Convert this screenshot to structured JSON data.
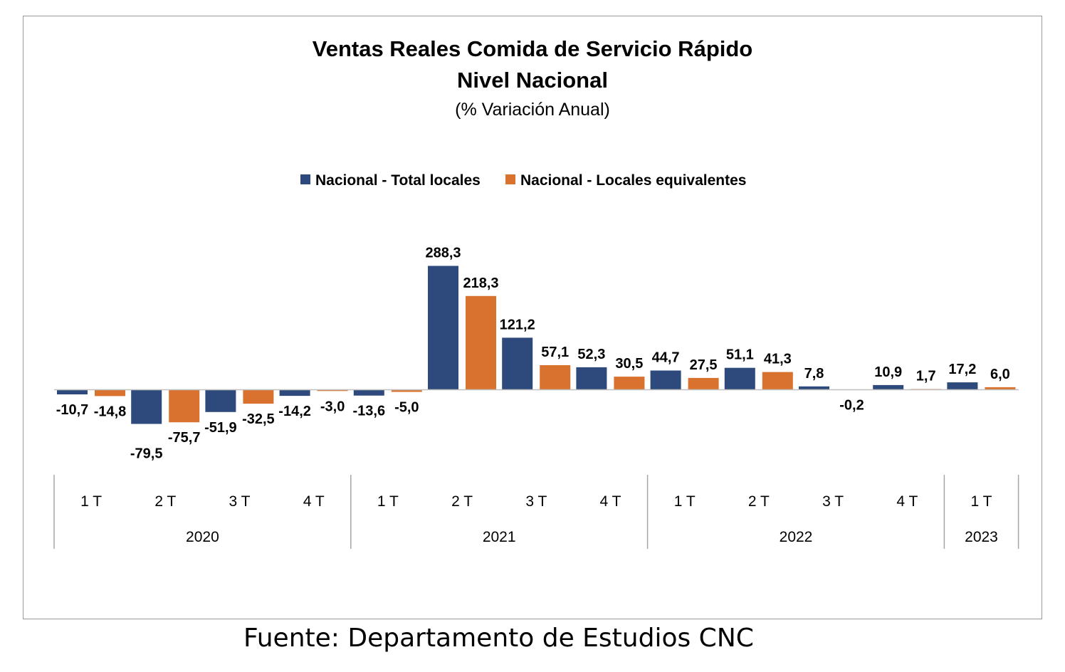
{
  "chart_data": {
    "type": "bar",
    "title": "Ventas Reales Comida de Servicio Rápido",
    "title_line2": "Nivel Nacional",
    "subtitle": "(% Variación Anual)",
    "legend_position": "top",
    "grid": false,
    "ylim": [
      -100,
      300
    ],
    "categories": [
      "1 T",
      "2 T",
      "3 T",
      "4 T",
      "1 T",
      "2 T",
      "3 T",
      "4 T",
      "1 T",
      "2 T",
      "3 T",
      "4 T",
      "1 T"
    ],
    "groups": [
      {
        "label": "2020",
        "count": 4
      },
      {
        "label": "2021",
        "count": 4
      },
      {
        "label": "2022",
        "count": 4
      },
      {
        "label": "2023",
        "count": 1
      }
    ],
    "series": [
      {
        "name": "Nacional - Total locales",
        "color": "#2e4a7c",
        "values": [
          -10.7,
          -79.5,
          -51.9,
          -14.2,
          -13.6,
          288.3,
          121.2,
          52.3,
          44.7,
          51.1,
          7.8,
          10.9,
          17.2
        ],
        "labels": [
          "-10,7",
          "-79,5",
          "-51,9",
          "-14,2",
          "-13,6",
          "288,3",
          "121,2",
          "52,3",
          "44,7",
          "51,1",
          "7,8",
          "10,9",
          "17,2"
        ]
      },
      {
        "name": "Nacional - Locales equivalentes",
        "color": "#d8722e",
        "values": [
          -14.8,
          -75.7,
          -32.5,
          -3.0,
          -5.0,
          218.3,
          57.1,
          30.5,
          27.5,
          41.3,
          -0.2,
          1.7,
          6.0
        ],
        "labels": [
          "-14,8",
          "-75,7",
          "-32,5",
          "-3,0",
          "-5,0",
          "218,3",
          "57,1",
          "30,5",
          "27,5",
          "41,3",
          "-0,2",
          "1,7",
          "6,0"
        ]
      }
    ]
  },
  "source_text": "Fuente: Departamento de Estudios CNC"
}
